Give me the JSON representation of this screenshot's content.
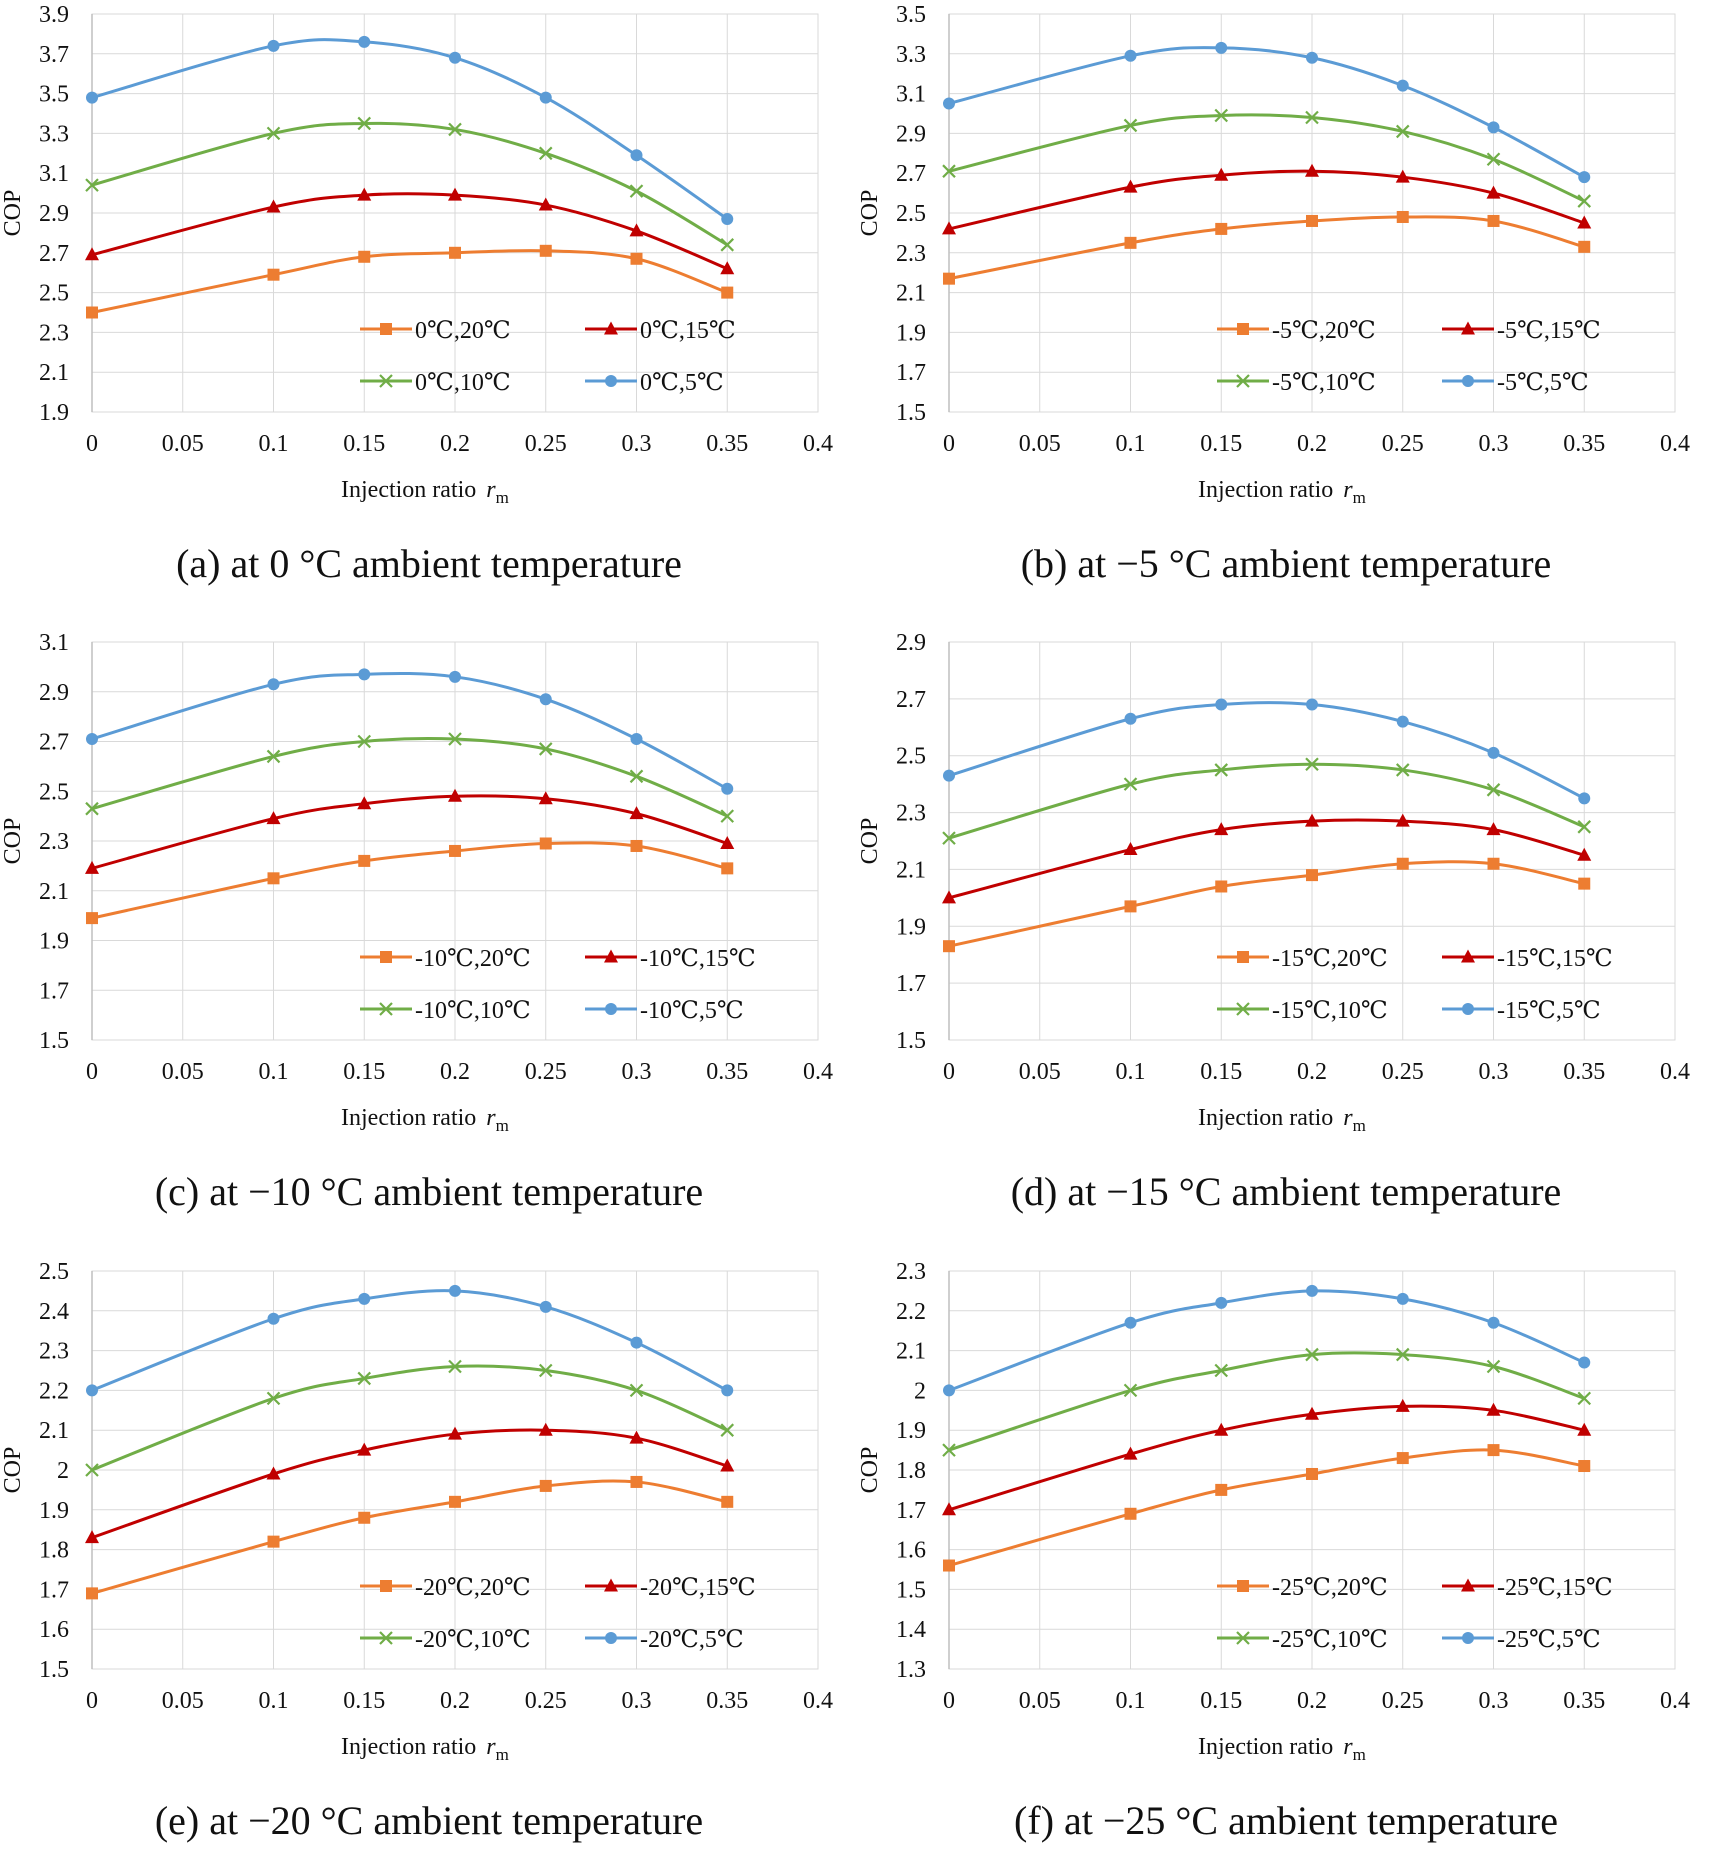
{
  "chart_data": [
    {
      "type": "line",
      "panel_label": "(a)",
      "caption": "(a) at 0 °C ambient temperature",
      "xlabel": "Injection ratio",
      "xlabel_sub": "r",
      "xlabel_subscript": "m",
      "ylabel": "COP",
      "xlim": [
        0,
        0.4
      ],
      "ylim": [
        1.9,
        3.9
      ],
      "xticks": [
        "0",
        "0.05",
        "0.1",
        "0.15",
        "0.2",
        "0.25",
        "0.3",
        "0.35",
        "0.4"
      ],
      "yticks": [
        "1.9",
        "2.1",
        "2.3",
        "2.5",
        "2.7",
        "2.9",
        "3.1",
        "3.3",
        "3.5",
        "3.7",
        "3.9"
      ],
      "grid": true,
      "legend_position": "lower-right",
      "x": [
        0,
        0.1,
        0.15,
        0.2,
        0.25,
        0.3,
        0.35
      ],
      "series": [
        {
          "name": "0℃,20℃",
          "color": "#ED7D31",
          "marker": "square",
          "values": [
            2.4,
            2.59,
            2.68,
            2.7,
            2.71,
            2.67,
            2.5
          ]
        },
        {
          "name": "0℃,15℃",
          "color": "#C00000",
          "marker": "triangle",
          "values": [
            2.69,
            2.93,
            2.99,
            2.99,
            2.94,
            2.81,
            2.62
          ]
        },
        {
          "name": "0℃,10℃",
          "color": "#70AD47",
          "marker": "x",
          "values": [
            3.04,
            3.3,
            3.35,
            3.32,
            3.2,
            3.01,
            2.74
          ]
        },
        {
          "name": "0℃,5℃",
          "color": "#5B9BD5",
          "marker": "circle",
          "values": [
            3.48,
            3.74,
            3.76,
            3.68,
            3.48,
            3.19,
            2.87
          ]
        }
      ]
    },
    {
      "type": "line",
      "panel_label": "(b)",
      "caption": "(b) at −5 °C ambient temperature",
      "xlabel": "Injection ratio",
      "xlabel_sub": "r",
      "xlabel_subscript": "m",
      "ylabel": "COP",
      "xlim": [
        0,
        0.4
      ],
      "ylim": [
        1.5,
        3.5
      ],
      "xticks": [
        "0",
        "0.05",
        "0.1",
        "0.15",
        "0.2",
        "0.25",
        "0.3",
        "0.35",
        "0.4"
      ],
      "yticks": [
        "1.5",
        "1.7",
        "1.9",
        "2.1",
        "2.3",
        "2.5",
        "2.7",
        "2.9",
        "3.1",
        "3.3",
        "3.5"
      ],
      "grid": true,
      "legend_position": "lower-right",
      "x": [
        0,
        0.1,
        0.15,
        0.2,
        0.25,
        0.3,
        0.35
      ],
      "series": [
        {
          "name": "-5℃,20℃",
          "color": "#ED7D31",
          "marker": "square",
          "values": [
            2.17,
            2.35,
            2.42,
            2.46,
            2.48,
            2.46,
            2.33
          ]
        },
        {
          "name": "-5℃,15℃",
          "color": "#C00000",
          "marker": "triangle",
          "values": [
            2.42,
            2.63,
            2.69,
            2.71,
            2.68,
            2.6,
            2.45
          ]
        },
        {
          "name": "-5℃,10℃",
          "color": "#70AD47",
          "marker": "x",
          "values": [
            2.71,
            2.94,
            2.99,
            2.98,
            2.91,
            2.77,
            2.56
          ]
        },
        {
          "name": "-5℃,5℃",
          "color": "#5B9BD5",
          "marker": "circle",
          "values": [
            3.05,
            3.29,
            3.33,
            3.28,
            3.14,
            2.93,
            2.68
          ]
        }
      ]
    },
    {
      "type": "line",
      "panel_label": "(c)",
      "caption": "(c) at −10 °C ambient temperature",
      "xlabel": "Injection ratio",
      "xlabel_sub": "r",
      "xlabel_subscript": "m",
      "ylabel": "COP",
      "xlim": [
        0,
        0.4
      ],
      "ylim": [
        1.5,
        3.1
      ],
      "xticks": [
        "0",
        "0.05",
        "0.1",
        "0.15",
        "0.2",
        "0.25",
        "0.3",
        "0.35",
        "0.4"
      ],
      "yticks": [
        "1.5",
        "1.7",
        "1.9",
        "2.1",
        "2.3",
        "2.5",
        "2.7",
        "2.9",
        "3.1"
      ],
      "grid": true,
      "legend_position": "lower-right",
      "x": [
        0,
        0.1,
        0.15,
        0.2,
        0.25,
        0.3,
        0.35
      ],
      "series": [
        {
          "name": "-10℃,20℃",
          "color": "#ED7D31",
          "marker": "square",
          "values": [
            1.99,
            2.15,
            2.22,
            2.26,
            2.29,
            2.28,
            2.19
          ]
        },
        {
          "name": "-10℃,15℃",
          "color": "#C00000",
          "marker": "triangle",
          "values": [
            2.19,
            2.39,
            2.45,
            2.48,
            2.47,
            2.41,
            2.29
          ]
        },
        {
          "name": "-10℃,10℃",
          "color": "#70AD47",
          "marker": "x",
          "values": [
            2.43,
            2.64,
            2.7,
            2.71,
            2.67,
            2.56,
            2.4
          ]
        },
        {
          "name": "-10℃,5℃",
          "color": "#5B9BD5",
          "marker": "circle",
          "values": [
            2.71,
            2.93,
            2.97,
            2.96,
            2.87,
            2.71,
            2.51
          ]
        }
      ]
    },
    {
      "type": "line",
      "panel_label": "(d)",
      "caption": "(d) at −15 °C ambient temperature",
      "xlabel": "Injection ratio",
      "xlabel_sub": "r",
      "xlabel_subscript": "m",
      "ylabel": "COP",
      "xlim": [
        0,
        0.4
      ],
      "ylim": [
        1.5,
        2.9
      ],
      "xticks": [
        "0",
        "0.05",
        "0.1",
        "0.15",
        "0.2",
        "0.25",
        "0.3",
        "0.35",
        "0.4"
      ],
      "yticks": [
        "1.5",
        "1.7",
        "1.9",
        "2.1",
        "2.3",
        "2.5",
        "2.7",
        "2.9"
      ],
      "grid": true,
      "legend_position": "lower-right",
      "x": [
        0,
        0.1,
        0.15,
        0.2,
        0.25,
        0.3,
        0.35
      ],
      "series": [
        {
          "name": "-15℃,20℃",
          "color": "#ED7D31",
          "marker": "square",
          "values": [
            1.83,
            1.97,
            2.04,
            2.08,
            2.12,
            2.12,
            2.05
          ]
        },
        {
          "name": "-15℃,15℃",
          "color": "#C00000",
          "marker": "triangle",
          "values": [
            2.0,
            2.17,
            2.24,
            2.27,
            2.27,
            2.24,
            2.15
          ]
        },
        {
          "name": "-15℃,10℃",
          "color": "#70AD47",
          "marker": "x",
          "values": [
            2.21,
            2.4,
            2.45,
            2.47,
            2.45,
            2.38,
            2.25
          ]
        },
        {
          "name": "-15℃,5℃",
          "color": "#5B9BD5",
          "marker": "circle",
          "values": [
            2.43,
            2.63,
            2.68,
            2.68,
            2.62,
            2.51,
            2.35
          ]
        }
      ]
    },
    {
      "type": "line",
      "panel_label": "(e)",
      "caption": "(e) at −20 °C ambient temperature",
      "xlabel": "Injection ratio",
      "xlabel_sub": "r",
      "xlabel_subscript": "m",
      "ylabel": "COP",
      "xlim": [
        0,
        0.4
      ],
      "ylim": [
        1.5,
        2.5
      ],
      "xticks": [
        "0",
        "0.05",
        "0.1",
        "0.15",
        "0.2",
        "0.25",
        "0.3",
        "0.35",
        "0.4"
      ],
      "yticks": [
        "1.5",
        "1.6",
        "1.7",
        "1.8",
        "1.9",
        "2",
        "2.1",
        "2.2",
        "2.3",
        "2.4",
        "2.5"
      ],
      "grid": true,
      "legend_position": "lower-right",
      "x": [
        0,
        0.1,
        0.15,
        0.2,
        0.25,
        0.3,
        0.35
      ],
      "series": [
        {
          "name": "-20℃,20℃",
          "color": "#ED7D31",
          "marker": "square",
          "values": [
            1.69,
            1.82,
            1.88,
            1.92,
            1.96,
            1.97,
            1.92
          ]
        },
        {
          "name": "-20℃,15℃",
          "color": "#C00000",
          "marker": "triangle",
          "values": [
            1.83,
            1.99,
            2.05,
            2.09,
            2.1,
            2.08,
            2.01
          ]
        },
        {
          "name": "-20℃,10℃",
          "color": "#70AD47",
          "marker": "x",
          "values": [
            2.0,
            2.18,
            2.23,
            2.26,
            2.25,
            2.2,
            2.1
          ]
        },
        {
          "name": "-20℃,5℃",
          "color": "#5B9BD5",
          "marker": "circle",
          "values": [
            2.2,
            2.38,
            2.43,
            2.45,
            2.41,
            2.32,
            2.2
          ]
        }
      ]
    },
    {
      "type": "line",
      "panel_label": "(f)",
      "caption": "(f) at −25 °C ambient temperature",
      "xlabel": "Injection ratio",
      "xlabel_sub": "r",
      "xlabel_subscript": "m",
      "ylabel": "COP",
      "xlim": [
        0,
        0.4
      ],
      "ylim": [
        1.3,
        2.3
      ],
      "xticks": [
        "0",
        "0.05",
        "0.1",
        "0.15",
        "0.2",
        "0.25",
        "0.3",
        "0.35",
        "0.4"
      ],
      "yticks": [
        "1.3",
        "1.4",
        "1.5",
        "1.6",
        "1.7",
        "1.8",
        "1.9",
        "2",
        "2.1",
        "2.2",
        "2.3"
      ],
      "grid": true,
      "legend_position": "lower-right",
      "x": [
        0,
        0.1,
        0.15,
        0.2,
        0.25,
        0.3,
        0.35
      ],
      "series": [
        {
          "name": "-25℃,20℃",
          "color": "#ED7D31",
          "marker": "square",
          "values": [
            1.56,
            1.69,
            1.75,
            1.79,
            1.83,
            1.85,
            1.81
          ]
        },
        {
          "name": "-25℃,15℃",
          "color": "#C00000",
          "marker": "triangle",
          "values": [
            1.7,
            1.84,
            1.9,
            1.94,
            1.96,
            1.95,
            1.9
          ]
        },
        {
          "name": "-25℃,10℃",
          "color": "#70AD47",
          "marker": "x",
          "values": [
            1.85,
            2.0,
            2.05,
            2.09,
            2.09,
            2.06,
            1.98
          ]
        },
        {
          "name": "-25℃,5℃",
          "color": "#5B9BD5",
          "marker": "circle",
          "values": [
            2.0,
            2.17,
            2.22,
            2.25,
            2.23,
            2.17,
            2.07
          ]
        }
      ]
    }
  ]
}
